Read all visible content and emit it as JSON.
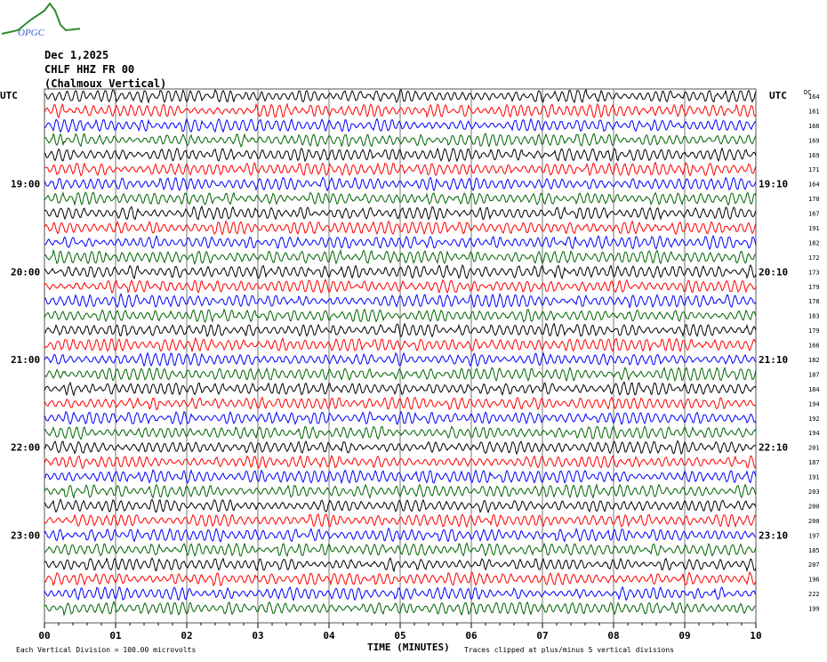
{
  "logo": {
    "text": "OPGC"
  },
  "header": {
    "date": "Dec 1,2025",
    "station": "CHLF HHZ FR 00",
    "location": "(Chalmoux Vertical)"
  },
  "chart_data": {
    "type": "line",
    "left_axis_title": "UTC",
    "right_axis_title": "UTC",
    "dc_label": "DC",
    "left_labels": [
      "",
      "",
      "",
      "",
      "",
      "",
      "19:00",
      "",
      "",
      "",
      "",
      "",
      "20:00",
      "",
      "",
      "",
      "",
      "",
      "21:00",
      "",
      "",
      "",
      "",
      "",
      "22:00",
      "",
      "",
      "",
      "",
      "",
      "23:00",
      "",
      "",
      "",
      "",
      ""
    ],
    "right_labels": [
      "",
      "",
      "",
      "",
      "",
      "",
      "19:10",
      "",
      "",
      "",
      "",
      "",
      "20:10",
      "",
      "",
      "",
      "",
      "",
      "21:10",
      "",
      "",
      "",
      "",
      "",
      "22:10",
      "",
      "",
      "",
      "",
      "",
      "23:10",
      "",
      "",
      "",
      "",
      ""
    ],
    "dc_offsets": [
      164,
      161,
      166,
      169,
      169,
      171,
      164,
      170,
      167,
      191,
      182,
      172,
      173,
      179,
      178,
      183,
      179,
      166,
      182,
      187,
      184,
      194,
      192,
      194,
      201,
      187,
      191,
      203,
      200,
      200,
      197,
      185,
      207,
      196,
      222,
      199
    ],
    "trace_colors": [
      "#000000",
      "#ff0000",
      "#0000ff",
      "#006400"
    ],
    "x_ticks": [
      "00",
      "01",
      "02",
      "03",
      "04",
      "05",
      "06",
      "07",
      "08",
      "09",
      "10"
    ],
    "xlim": [
      0,
      10
    ],
    "xlabel": "TIME (MINUTES)",
    "scale_note": "Each Vertical Division =  100.00 microvolts",
    "clip_note": "Traces clipped at plus/minus 5 vertical divisions",
    "grid": true
  }
}
